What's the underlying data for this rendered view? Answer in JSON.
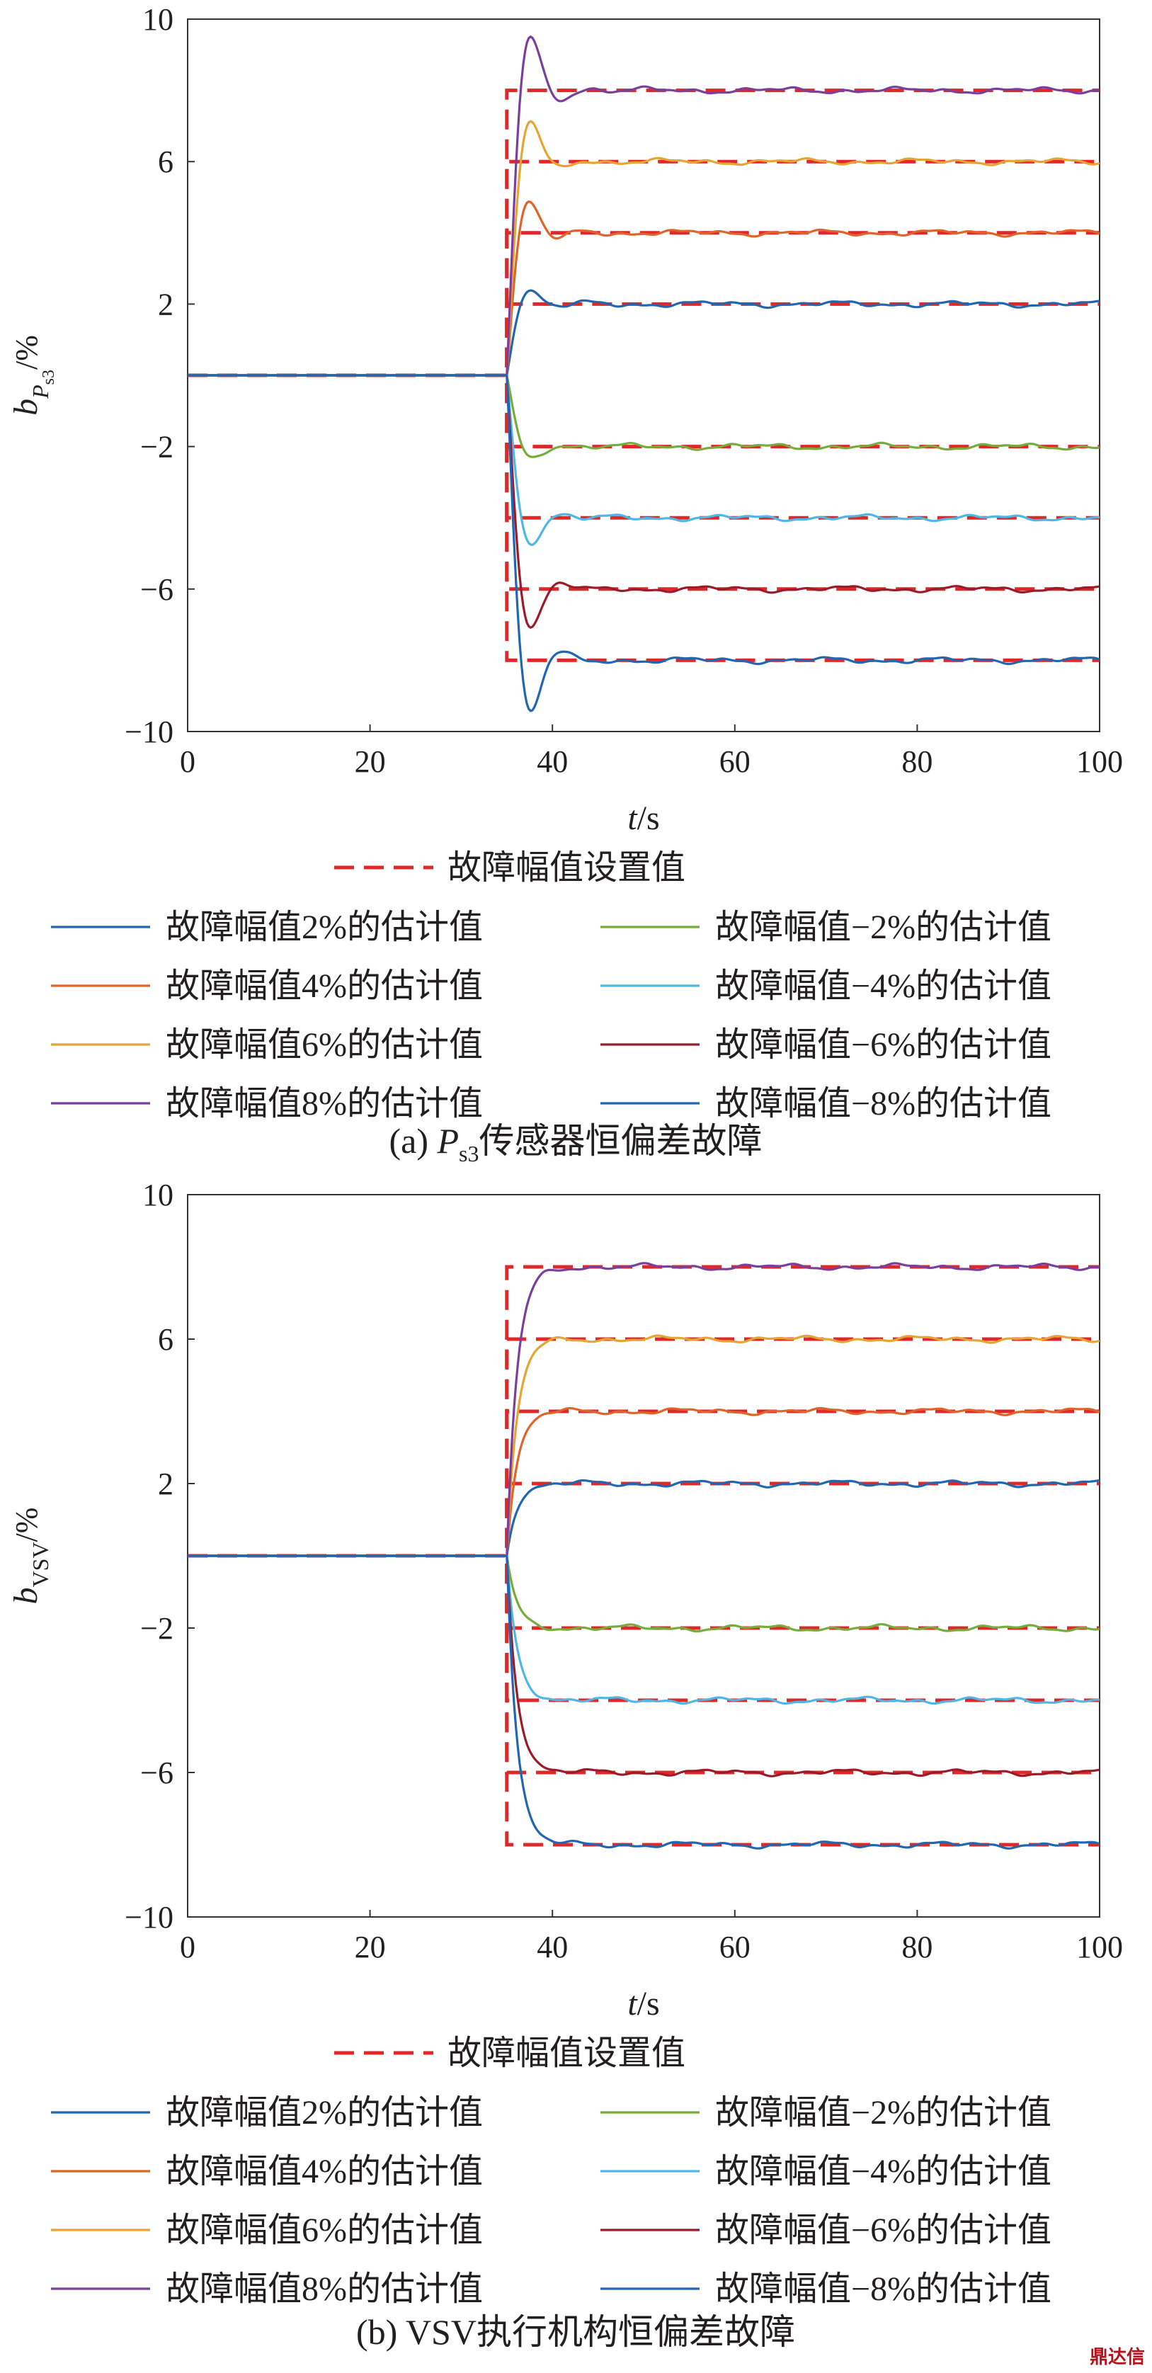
{
  "chart_data": [
    {
      "panel": "a",
      "type": "line",
      "caption_prefix": "(a) ",
      "caption_sym": "P",
      "caption_sub": "s3",
      "caption_rest": "传感器恒偏差故障",
      "ylabel_main": "b",
      "ylabel_sub1": "P",
      "ylabel_sub2": "s3",
      "ylabel_unit": "/%",
      "xlabel_italic": "t",
      "xlabel_unit": "/s",
      "xlim": [
        0,
        100
      ],
      "ylim": [
        -10,
        10
      ],
      "xticks": [
        "0",
        "20",
        "40",
        "60",
        "80",
        "100"
      ],
      "yticks": [
        "10",
        "6",
        "2",
        "−2",
        "−6",
        "−10"
      ],
      "ytick_values": [
        10,
        6,
        2,
        -2,
        -6,
        -10
      ],
      "fault_time": 35,
      "setpoint_legend": "故障幅值设置值",
      "series": [
        {
          "name": "故障幅值2%的估计值",
          "amp": 2,
          "color": "#2166b0",
          "overshoot": 0.2
        },
        {
          "name": "故障幅值4%的估计值",
          "amp": 4,
          "color": "#e0632a",
          "overshoot": 0.3
        },
        {
          "name": "故障幅值6%的估计值",
          "amp": 6,
          "color": "#e6a532",
          "overshoot": 0.17
        },
        {
          "name": "故障幅值8%的估计值",
          "amp": 8,
          "color": "#7a3f9d",
          "overshoot": 0.17
        },
        {
          "name": "故障幅值−2%的估计值",
          "amp": -2,
          "color": "#77ac3c",
          "overshoot": 0.05
        },
        {
          "name": "故障幅值−4%的估计值",
          "amp": -4,
          "color": "#4fb6e6",
          "overshoot": 0.12
        },
        {
          "name": "故障幅值−6%的估计值",
          "amp": -6,
          "color": "#9b1b2a",
          "overshoot": 0.13
        },
        {
          "name": "故障幅值−8%的估计值",
          "amp": -8,
          "color": "#2166b0",
          "overshoot": 0.14
        }
      ],
      "setpoint_color": "#e02828"
    },
    {
      "panel": "b",
      "type": "line",
      "caption_prefix": "(b) ",
      "caption_sym": "",
      "caption_sub": "",
      "caption_rest": "VSV执行机构恒偏差故障",
      "ylabel_main": "b",
      "ylabel_sub1": "VSV",
      "ylabel_sub2": "",
      "ylabel_unit": "/%",
      "xlabel_italic": "t",
      "xlabel_unit": "/s",
      "xlim": [
        0,
        100
      ],
      "ylim": [
        -10,
        10
      ],
      "xticks": [
        "0",
        "20",
        "40",
        "60",
        "80",
        "100"
      ],
      "yticks": [
        "10",
        "6",
        "2",
        "−2",
        "−6",
        "−10"
      ],
      "ytick_values": [
        10,
        6,
        2,
        -2,
        -6,
        -10
      ],
      "fault_time": 35,
      "setpoint_legend": "故障幅值设置值",
      "series": [
        {
          "name": "故障幅值2%的估计值",
          "amp": 2,
          "color": "#2166b0",
          "overshoot": 0
        },
        {
          "name": "故障幅值4%的估计值",
          "amp": 4,
          "color": "#e0632a",
          "overshoot": 0
        },
        {
          "name": "故障幅值6%的估计值",
          "amp": 6,
          "color": "#e6a532",
          "overshoot": 0
        },
        {
          "name": "故障幅值8%的估计值",
          "amp": 8,
          "color": "#7a3f9d",
          "overshoot": 0
        },
        {
          "name": "故障幅值−2%的估计值",
          "amp": -2,
          "color": "#77ac3c",
          "overshoot": 0
        },
        {
          "name": "故障幅值−4%的估计值",
          "amp": -4,
          "color": "#4fb6e6",
          "overshoot": 0
        },
        {
          "name": "故障幅值−6%的估计值",
          "amp": -6,
          "color": "#9b1b2a",
          "overshoot": 0
        },
        {
          "name": "故障幅值−8%的估计值",
          "amp": -8,
          "color": "#2166b0",
          "overshoot": 0
        }
      ],
      "setpoint_color": "#e02828"
    }
  ],
  "watermark": "鼎达信"
}
